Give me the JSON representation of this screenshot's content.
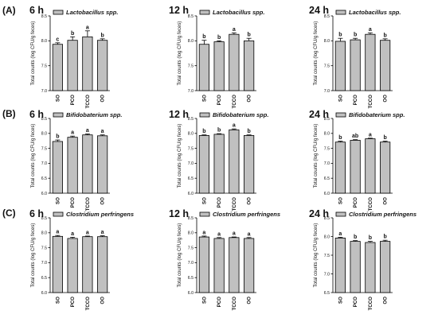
{
  "row_labels": [
    "(A)",
    "(B)",
    "(C)"
  ],
  "time_labels": [
    "6 h",
    "12 h",
    "24 h"
  ],
  "chart_data": [
    {
      "type": "bar",
      "row": 0,
      "col": 0,
      "legend": "Lactobacillus spp.",
      "ylabel": "Total counts (log CFU/g feces)",
      "categories": [
        "SO",
        "PCO",
        "TCCO",
        "OO"
      ],
      "ylim": [
        7.0,
        8.5
      ],
      "yticks": [
        "7.0",
        "7.5",
        "8.0",
        "8.5"
      ],
      "values": [
        7.93,
        8.01,
        8.08,
        8.01
      ],
      "errors": [
        0.03,
        0.07,
        0.12,
        0.03
      ],
      "letters": [
        "c",
        "b",
        "a",
        "b"
      ]
    },
    {
      "type": "bar",
      "row": 0,
      "col": 1,
      "legend": "Lactobacillus spp.",
      "ylabel": "Total counts (log CFU/g feces)",
      "categories": [
        "SO",
        "PCO",
        "TCCO",
        "OO"
      ],
      "ylim": [
        7.0,
        8.5
      ],
      "yticks": [
        "7.0",
        "7.5",
        "8.0",
        "8.5"
      ],
      "values": [
        7.93,
        7.98,
        8.13,
        8.0
      ],
      "errors": [
        0.08,
        0.02,
        0.03,
        0.05
      ],
      "letters": [
        "b",
        "b",
        "a",
        "b"
      ]
    },
    {
      "type": "bar",
      "row": 0,
      "col": 2,
      "legend": "Lactobacillus spp.",
      "ylabel": "Total counts (log CFU/g feces)",
      "categories": [
        "SO",
        "PCO",
        "TCCO",
        "OO"
      ],
      "ylim": [
        7.0,
        8.5
      ],
      "yticks": [
        "7.0",
        "7.5",
        "8.0",
        "8.5"
      ],
      "values": [
        7.99,
        8.02,
        8.13,
        8.01
      ],
      "errors": [
        0.06,
        0.03,
        0.03,
        0.03
      ],
      "letters": [
        "b",
        "b",
        "a",
        "b"
      ]
    },
    {
      "type": "bar",
      "row": 1,
      "col": 0,
      "legend": "Bifidobaterium spp.",
      "ylabel": "Total counts (log CFU/g feces)",
      "categories": [
        "SO",
        "PCO",
        "TCCO",
        "OO"
      ],
      "ylim": [
        6.0,
        8.5
      ],
      "yticks": [
        "6.0",
        "6.5",
        "7.0",
        "7.5",
        "8.0",
        "8.5"
      ],
      "values": [
        7.73,
        7.87,
        7.95,
        7.92
      ],
      "errors": [
        0.05,
        0.04,
        0.03,
        0.03
      ],
      "letters": [
        "b",
        "a",
        "a",
        "a"
      ]
    },
    {
      "type": "bar",
      "row": 1,
      "col": 1,
      "legend": "Bifidobaterium spp.",
      "ylabel": "Total counts (log CFU/g feces)",
      "categories": [
        "SO",
        "PCO",
        "TCCO",
        "OO"
      ],
      "ylim": [
        6.0,
        8.5
      ],
      "yticks": [
        "6.0",
        "6.5",
        "7.0",
        "7.5",
        "8.0",
        "8.5"
      ],
      "values": [
        7.93,
        7.97,
        8.12,
        7.93
      ],
      "errors": [
        0.02,
        0.02,
        0.03,
        0.02
      ],
      "letters": [
        "b",
        "b",
        "a",
        "b"
      ]
    },
    {
      "type": "bar",
      "row": 1,
      "col": 2,
      "legend": "Bifidobaterium spp.",
      "ylabel": "Total counts (log CFU/g feces)",
      "categories": [
        "SO",
        "PCO",
        "TCCO",
        "OO"
      ],
      "ylim": [
        6.0,
        8.5
      ],
      "yticks": [
        "6.0",
        "6.5",
        "7.0",
        "7.5",
        "8.0",
        "8.5"
      ],
      "values": [
        7.71,
        7.77,
        7.82,
        7.71
      ],
      "errors": [
        0.03,
        0.02,
        0.02,
        0.03
      ],
      "letters": [
        "b",
        "ab",
        "a",
        "b"
      ]
    },
    {
      "type": "bar",
      "row": 2,
      "col": 0,
      "legend": "Clostridium perfringens",
      "ylabel": "Total counts (log CFU/g feces)",
      "categories": [
        "SO",
        "PCO",
        "TCCO",
        "OO"
      ],
      "ylim": [
        6.0,
        8.5
      ],
      "yticks": [
        "6.0",
        "6.5",
        "7.0",
        "7.5",
        "8.0",
        "8.5"
      ],
      "values": [
        7.88,
        7.81,
        7.87,
        7.87
      ],
      "errors": [
        0.03,
        0.04,
        0.02,
        0.03
      ],
      "letters": [
        "a",
        "a",
        "a",
        "a"
      ]
    },
    {
      "type": "bar",
      "row": 2,
      "col": 1,
      "legend": "Clostridium perfringens",
      "ylabel": "Total counts (log CFU/g feces)",
      "categories": [
        "SO",
        "PCO",
        "TCCO",
        "OO"
      ],
      "ylim": [
        6.0,
        8.5
      ],
      "yticks": [
        "6.0",
        "6.5",
        "7.0",
        "7.5",
        "8.0",
        "8.5"
      ],
      "values": [
        7.86,
        7.81,
        7.84,
        7.81
      ],
      "errors": [
        0.03,
        0.03,
        0.02,
        0.03
      ],
      "letters": [
        "a",
        "a",
        "a",
        "a"
      ]
    },
    {
      "type": "bar",
      "row": 2,
      "col": 2,
      "legend": "Clostridium perfringens",
      "ylabel": "Total counts (log CFU/g feces)",
      "categories": [
        "SO",
        "PCO",
        "TCCO",
        "OO"
      ],
      "ylim": [
        6.5,
        8.5
      ],
      "yticks": [
        "6.5",
        "7.0",
        "7.5",
        "8.0",
        "8.5"
      ],
      "values": [
        7.96,
        7.87,
        7.84,
        7.87
      ],
      "errors": [
        0.02,
        0.02,
        0.03,
        0.03
      ],
      "letters": [
        "a",
        "b",
        "b",
        "b"
      ]
    }
  ]
}
